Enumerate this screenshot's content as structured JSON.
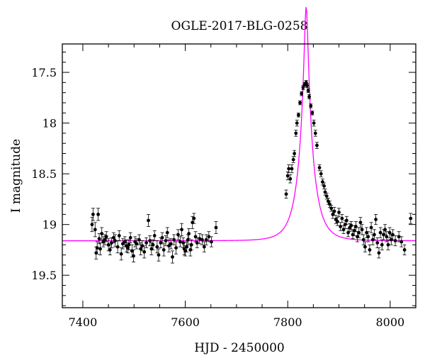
{
  "chart_data": {
    "type": "scatter",
    "title": "OGLE-2017-BLG-0258",
    "xlabel": "HJD - 2450000",
    "ylabel": "I magnitude",
    "xlim": [
      7360,
      8050
    ],
    "ylim": [
      19.82,
      17.22
    ],
    "y_inverted": true,
    "xticks": [
      7400,
      7600,
      7800,
      8000
    ],
    "yticks": [
      17.5,
      18,
      18.5,
      19,
      19.5
    ],
    "xtick_labels": [
      "7400",
      "7600",
      "7800",
      "8000"
    ],
    "ytick_labels": [
      "17.5",
      "18",
      "18.5",
      "19",
      "19.5"
    ],
    "grid": false,
    "legend": "none",
    "model": {
      "type": "line",
      "color": "#ff00ff",
      "t0": 7836,
      "u0": 0.12,
      "tE": 28,
      "baseline": 19.16
    },
    "series": [
      {
        "marker_color": "#000000",
        "points": [
          [
            7418,
            19.0,
            0.07
          ],
          [
            7420,
            18.9,
            0.06
          ],
          [
            7424,
            19.05,
            0.07
          ],
          [
            7426,
            19.28,
            0.06
          ],
          [
            7428,
            19.23,
            0.06
          ],
          [
            7430,
            18.9,
            0.06
          ],
          [
            7432,
            19.14,
            0.05
          ],
          [
            7434,
            19.24,
            0.06
          ],
          [
            7437,
            19.09,
            0.06
          ],
          [
            7440,
            19.17,
            0.05
          ],
          [
            7443,
            19.15,
            0.05
          ],
          [
            7446,
            19.12,
            0.05
          ],
          [
            7450,
            19.2,
            0.06
          ],
          [
            7453,
            19.25,
            0.05
          ],
          [
            7456,
            19.18,
            0.05
          ],
          [
            7460,
            19.13,
            0.05
          ],
          [
            7463,
            19.16,
            0.06
          ],
          [
            7468,
            19.22,
            0.06
          ],
          [
            7471,
            19.11,
            0.05
          ],
          [
            7475,
            19.29,
            0.06
          ],
          [
            7478,
            19.19,
            0.05
          ],
          [
            7482,
            19.17,
            0.05
          ],
          [
            7485,
            19.21,
            0.06
          ],
          [
            7488,
            19.23,
            0.05
          ],
          [
            7490,
            19.2,
            0.05
          ],
          [
            7493,
            19.13,
            0.05
          ],
          [
            7496,
            19.26,
            0.06
          ],
          [
            7499,
            19.31,
            0.06
          ],
          [
            7502,
            19.17,
            0.05
          ],
          [
            7505,
            19.19,
            0.05
          ],
          [
            7510,
            19.15,
            0.05
          ],
          [
            7513,
            19.24,
            0.06
          ],
          [
            7516,
            19.21,
            0.05
          ],
          [
            7520,
            19.27,
            0.06
          ],
          [
            7524,
            19.18,
            0.05
          ],
          [
            7528,
            18.96,
            0.06
          ],
          [
            7531,
            19.16,
            0.05
          ],
          [
            7534,
            19.24,
            0.06
          ],
          [
            7537,
            19.2,
            0.05
          ],
          [
            7540,
            19.11,
            0.05
          ],
          [
            7545,
            19.22,
            0.06
          ],
          [
            7548,
            19.3,
            0.06
          ],
          [
            7552,
            19.18,
            0.05
          ],
          [
            7555,
            19.13,
            0.05
          ],
          [
            7558,
            19.25,
            0.06
          ],
          [
            7562,
            19.16,
            0.05
          ],
          [
            7565,
            19.08,
            0.05
          ],
          [
            7568,
            19.21,
            0.06
          ],
          [
            7572,
            19.19,
            0.05
          ],
          [
            7575,
            19.32,
            0.06
          ],
          [
            7578,
            19.15,
            0.05
          ],
          [
            7582,
            19.23,
            0.06
          ],
          [
            7586,
            19.1,
            0.05
          ],
          [
            7590,
            19.17,
            0.05
          ],
          [
            7593,
            19.05,
            0.06
          ],
          [
            7596,
            19.18,
            0.05
          ],
          [
            7598,
            19.24,
            0.06
          ],
          [
            7600,
            19.26,
            0.05
          ],
          [
            7603,
            19.22,
            0.05
          ],
          [
            7605,
            19.15,
            0.05
          ],
          [
            7607,
            19.09,
            0.05
          ],
          [
            7610,
            19.25,
            0.06
          ],
          [
            7612,
            19.2,
            0.05
          ],
          [
            7614,
            18.98,
            0.06
          ],
          [
            7617,
            18.94,
            0.05
          ],
          [
            7620,
            19.12,
            0.05
          ],
          [
            7623,
            19.18,
            0.05
          ],
          [
            7628,
            19.14,
            0.05
          ],
          [
            7633,
            19.15,
            0.05
          ],
          [
            7637,
            19.22,
            0.05
          ],
          [
            7641,
            19.15,
            0.05
          ],
          [
            7646,
            19.12,
            0.05
          ],
          [
            7651,
            19.17,
            0.05
          ],
          [
            7660,
            19.03,
            0.06
          ],
          [
            7797,
            18.7,
            0.04
          ],
          [
            7800,
            18.52,
            0.04
          ],
          [
            7802,
            18.45,
            0.04
          ],
          [
            7805,
            18.55,
            0.04
          ],
          [
            7808,
            18.45,
            0.04
          ],
          [
            7811,
            18.36,
            0.03
          ],
          [
            7813,
            18.3,
            0.03
          ],
          [
            7816,
            18.1,
            0.03
          ],
          [
            7818,
            18.0,
            0.03
          ],
          [
            7821,
            17.92,
            0.02
          ],
          [
            7824,
            17.8,
            0.02
          ],
          [
            7827,
            17.71,
            0.02
          ],
          [
            7830,
            17.65,
            0.02
          ],
          [
            7833,
            17.62,
            0.02
          ],
          [
            7836,
            17.6,
            0.02
          ],
          [
            7838,
            17.63,
            0.02
          ],
          [
            7840,
            17.68,
            0.02
          ],
          [
            7842,
            17.74,
            0.02
          ],
          [
            7845,
            17.83,
            0.02
          ],
          [
            7848,
            17.9,
            0.02
          ],
          [
            7851,
            18.0,
            0.03
          ],
          [
            7854,
            18.1,
            0.03
          ],
          [
            7857,
            18.22,
            0.03
          ],
          [
            7862,
            18.44,
            0.03
          ],
          [
            7865,
            18.5,
            0.03
          ],
          [
            7868,
            18.58,
            0.03
          ],
          [
            7871,
            18.62,
            0.03
          ],
          [
            7873,
            18.68,
            0.03
          ],
          [
            7876,
            18.72,
            0.03
          ],
          [
            7879,
            18.77,
            0.03
          ],
          [
            7882,
            18.8,
            0.03
          ],
          [
            7885,
            18.84,
            0.03
          ],
          [
            7888,
            18.9,
            0.04
          ],
          [
            7891,
            18.87,
            0.04
          ],
          [
            7894,
            18.95,
            0.04
          ],
          [
            7897,
            18.97,
            0.04
          ],
          [
            7900,
            18.88,
            0.04
          ],
          [
            7903,
            19.02,
            0.04
          ],
          [
            7906,
            18.94,
            0.04
          ],
          [
            7909,
            19.05,
            0.04
          ],
          [
            7912,
            19.0,
            0.04
          ],
          [
            7915,
            18.96,
            0.04
          ],
          [
            7918,
            19.08,
            0.04
          ],
          [
            7921,
            19.03,
            0.04
          ],
          [
            7924,
            19.01,
            0.04
          ],
          [
            7927,
            19.1,
            0.04
          ],
          [
            7930,
            19.06,
            0.05
          ],
          [
            7933,
            19.02,
            0.05
          ],
          [
            7936,
            19.12,
            0.05
          ],
          [
            7939,
            19.08,
            0.05
          ],
          [
            7942,
            18.98,
            0.05
          ],
          [
            7945,
            19.05,
            0.05
          ],
          [
            7948,
            19.15,
            0.05
          ],
          [
            7951,
            19.22,
            0.05
          ],
          [
            7954,
            19.08,
            0.05
          ],
          [
            7957,
            19.12,
            0.05
          ],
          [
            7960,
            19.25,
            0.05
          ],
          [
            7963,
            19.03,
            0.05
          ],
          [
            7966,
            19.15,
            0.05
          ],
          [
            7969,
            19.1,
            0.05
          ],
          [
            7972,
            18.95,
            0.05
          ],
          [
            7975,
            19.18,
            0.05
          ],
          [
            7978,
            19.28,
            0.05
          ],
          [
            7981,
            19.08,
            0.05
          ],
          [
            7984,
            19.2,
            0.05
          ],
          [
            7987,
            19.1,
            0.05
          ],
          [
            7990,
            19.05,
            0.05
          ],
          [
            7993,
            19.12,
            0.05
          ],
          [
            7996,
            19.2,
            0.05
          ],
          [
            7999,
            19.08,
            0.05
          ],
          [
            8002,
            19.15,
            0.05
          ],
          [
            8005,
            19.1,
            0.05
          ],
          [
            8010,
            19.16,
            0.05
          ],
          [
            8017,
            19.12,
            0.05
          ],
          [
            8022,
            19.17,
            0.05
          ],
          [
            8028,
            19.25,
            0.05
          ],
          [
            8040,
            18.94,
            0.05
          ]
        ]
      }
    ]
  }
}
